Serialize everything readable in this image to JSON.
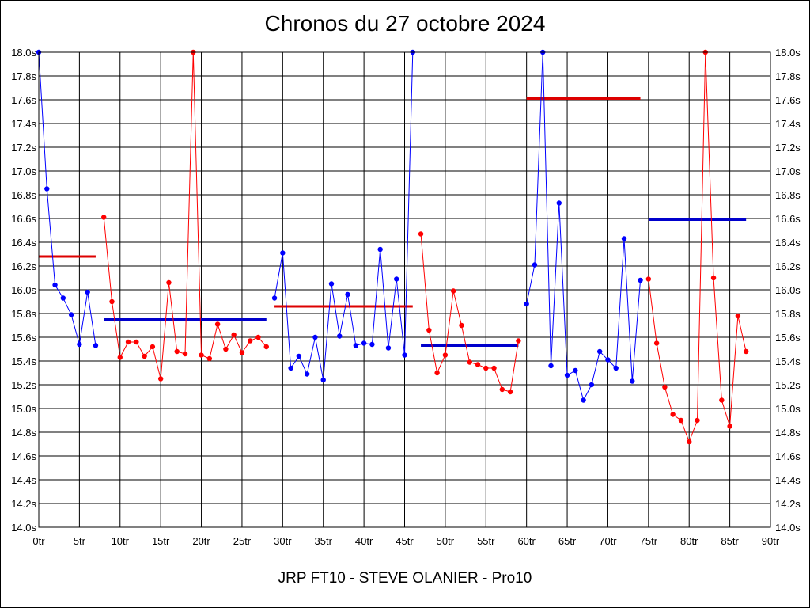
{
  "chart_data": {
    "type": "line",
    "title": "Chronos du 27 octobre 2024",
    "subtitle": "JRP FT10 - STEVE OLANIER - Pro10",
    "xlim": [
      0,
      90
    ],
    "ylim": [
      14.0,
      18.0
    ],
    "grid": true,
    "x_ticks": [
      "0tr",
      "5tr",
      "10tr",
      "15tr",
      "20tr",
      "25tr",
      "30tr",
      "35tr",
      "40tr",
      "45tr",
      "50tr",
      "55tr",
      "60tr",
      "65tr",
      "70tr",
      "75tr",
      "80tr",
      "85tr",
      "90tr"
    ],
    "y_ticks": [
      "14.0s",
      "14.2s",
      "14.4s",
      "14.6s",
      "14.8s",
      "15.0s",
      "15.2s",
      "15.4s",
      "15.6s",
      "15.8s",
      "16.0s",
      "16.2s",
      "16.4s",
      "16.6s",
      "16.8s",
      "17.0s",
      "17.2s",
      "17.4s",
      "17.6s",
      "17.8s",
      "18.0s"
    ],
    "colors": {
      "blue": "#0000ff",
      "red": "#ff0000",
      "avg_blue": "#0000cc",
      "avg_red": "#dd0000"
    },
    "series": [
      {
        "color": "blue",
        "x": [
          0,
          1,
          2,
          3,
          4,
          5,
          6,
          7
        ],
        "y": [
          18.0,
          16.85,
          16.04,
          15.93,
          15.79,
          15.54,
          15.98,
          15.53
        ]
      },
      {
        "color": "red",
        "x": [
          8,
          9,
          10,
          11,
          12,
          13,
          14,
          15,
          16,
          17,
          18,
          19,
          20,
          21,
          22,
          23,
          24,
          25,
          26,
          27,
          28
        ],
        "y": [
          16.61,
          15.9,
          15.43,
          15.56,
          15.56,
          15.44,
          15.52,
          15.25,
          16.06,
          15.48,
          15.46,
          18.0,
          15.45,
          15.42,
          15.71,
          15.5,
          15.62,
          15.47,
          15.57,
          15.6,
          15.52
        ]
      },
      {
        "color": "blue",
        "x": [
          29,
          30,
          31,
          32,
          33,
          34,
          35,
          36,
          37,
          38,
          39,
          40,
          41,
          42,
          43,
          44,
          45,
          46
        ],
        "y": [
          15.93,
          16.31,
          15.34,
          15.44,
          15.29,
          15.6,
          15.24,
          16.05,
          15.61,
          15.96,
          15.53,
          15.55,
          15.54,
          16.34,
          15.51,
          16.09,
          15.45,
          18.0
        ]
      },
      {
        "color": "red",
        "x": [
          47,
          48,
          49,
          50,
          51,
          52,
          53,
          54,
          55,
          56,
          57,
          58,
          59
        ],
        "y": [
          16.47,
          15.66,
          15.3,
          15.45,
          15.99,
          15.7,
          15.39,
          15.37,
          15.34,
          15.34,
          15.16,
          15.14,
          15.57
        ]
      },
      {
        "color": "blue",
        "x": [
          60,
          61,
          62,
          63,
          64,
          65,
          66,
          67,
          68,
          69,
          70,
          71,
          72,
          73,
          74
        ],
        "y": [
          15.88,
          16.21,
          18.0,
          15.36,
          16.73,
          15.28,
          15.32,
          15.07,
          15.2,
          15.48,
          15.41,
          15.34,
          16.43,
          15.23,
          16.08
        ]
      },
      {
        "color": "red",
        "x": [
          75,
          76,
          77,
          78,
          79,
          80,
          81,
          82,
          83,
          84,
          85,
          86,
          87
        ],
        "y": [
          16.09,
          15.55,
          15.18,
          14.95,
          14.9,
          14.72,
          14.9,
          18.0,
          16.1,
          15.07,
          14.85,
          15.78,
          15.48
        ]
      }
    ],
    "averages": [
      {
        "color": "avg_red",
        "x": [
          0,
          7
        ],
        "y": 16.28
      },
      {
        "color": "avg_blue",
        "x": [
          8,
          28
        ],
        "y": 15.75
      },
      {
        "color": "avg_red",
        "x": [
          29,
          46
        ],
        "y": 15.86
      },
      {
        "color": "avg_blue",
        "x": [
          47,
          59
        ],
        "y": 15.53
      },
      {
        "color": "avg_red",
        "x": [
          60,
          74
        ],
        "y": 17.61
      },
      {
        "color": "avg_blue",
        "x": [
          75,
          87
        ],
        "y": 16.59
      }
    ]
  }
}
